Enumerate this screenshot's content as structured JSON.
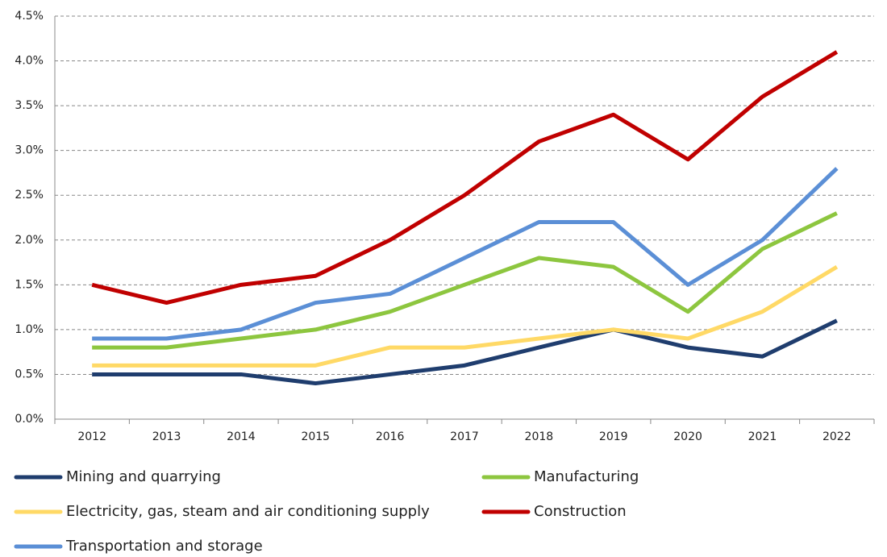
{
  "chart_data": {
    "type": "line",
    "categories": [
      "2012",
      "2013",
      "2014",
      "2015",
      "2016",
      "2017",
      "2018",
      "2019",
      "2020",
      "2021",
      "2022"
    ],
    "series": [
      {
        "name": "Mining and quarrying",
        "color": "#1f3d6e",
        "values": [
          0.5,
          0.5,
          0.5,
          0.4,
          0.5,
          0.6,
          0.8,
          1.0,
          0.8,
          0.7,
          1.1
        ]
      },
      {
        "name": "Manufacturing",
        "color": "#8dc63f",
        "values": [
          0.8,
          0.8,
          0.9,
          1.0,
          1.2,
          1.5,
          1.8,
          1.7,
          1.2,
          1.9,
          2.3
        ]
      },
      {
        "name": "Electricity, gas, steam and air conditioning supply",
        "color": "#ffd966",
        "values": [
          0.6,
          0.6,
          0.6,
          0.6,
          0.8,
          0.8,
          0.9,
          1.0,
          0.9,
          1.2,
          1.7
        ]
      },
      {
        "name": "Construction",
        "color": "#c00000",
        "values": [
          1.5,
          1.3,
          1.5,
          1.6,
          2.0,
          2.5,
          3.1,
          3.4,
          2.9,
          3.6,
          4.1
        ]
      },
      {
        "name": "Transportation and storage",
        "color": "#5b8fd6",
        "values": [
          0.9,
          0.9,
          1.0,
          1.3,
          1.4,
          1.8,
          2.2,
          2.2,
          1.5,
          2.0,
          2.8
        ]
      }
    ],
    "ylim": [
      0,
      4.5
    ],
    "yticks": [
      {
        "value": 0,
        "label": "0.0%"
      },
      {
        "value": 0.5,
        "label": "0.5%"
      },
      {
        "value": 1.0,
        "label": "1.0%"
      },
      {
        "value": 1.5,
        "label": "1.5%"
      },
      {
        "value": 2.0,
        "label": "2.0%"
      },
      {
        "value": 2.5,
        "label": "2.5%"
      },
      {
        "value": 3.0,
        "label": "3.0%"
      },
      {
        "value": 3.5,
        "label": "3.5%"
      },
      {
        "value": 4.0,
        "label": "4.0%"
      },
      {
        "value": 4.5,
        "label": "4.5%"
      }
    ],
    "grid": true,
    "legend": "bottom"
  }
}
